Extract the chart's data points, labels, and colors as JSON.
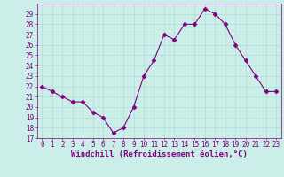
{
  "x": [
    0,
    1,
    2,
    3,
    4,
    5,
    6,
    7,
    8,
    9,
    10,
    11,
    12,
    13,
    14,
    15,
    16,
    17,
    18,
    19,
    20,
    21,
    22,
    23
  ],
  "y": [
    22.0,
    21.5,
    21.0,
    20.5,
    20.5,
    19.5,
    19.0,
    17.5,
    18.0,
    20.0,
    23.0,
    24.5,
    27.0,
    26.5,
    28.0,
    28.0,
    29.5,
    29.0,
    28.0,
    26.0,
    24.5,
    23.0,
    21.5,
    21.5
  ],
  "line_color": "#800080",
  "marker": "D",
  "marker_size": 2.5,
  "bg_color": "#cceee8",
  "grid_color": "#b0dcd8",
  "xlabel": "Windchill (Refroidissement éolien,°C)",
  "ylim": [
    17,
    30
  ],
  "xlim": [
    -0.5,
    23.5
  ],
  "yticks": [
    17,
    18,
    19,
    20,
    21,
    22,
    23,
    24,
    25,
    26,
    27,
    28,
    29
  ],
  "xticks": [
    0,
    1,
    2,
    3,
    4,
    5,
    6,
    7,
    8,
    9,
    10,
    11,
    12,
    13,
    14,
    15,
    16,
    17,
    18,
    19,
    20,
    21,
    22,
    23
  ],
  "tick_color": "#800080",
  "tick_fontsize": 5.5,
  "xlabel_fontsize": 6.5,
  "axis_label_color": "#800080",
  "spine_color": "#800080"
}
